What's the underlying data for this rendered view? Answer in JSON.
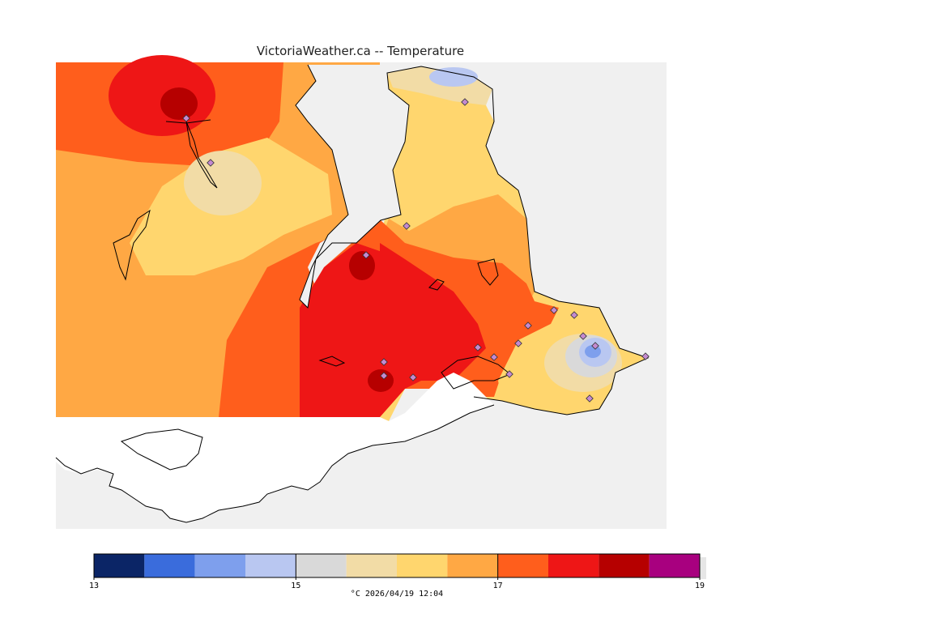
{
  "title": "VictoriaWeather.ca -- Temperature",
  "legend": {
    "min": 13,
    "max": 19,
    "ticks": [
      "13",
      "15",
      "17",
      "19"
    ],
    "bins": [
      {
        "from": 13.0,
        "to": 13.5,
        "color": "#0b2566"
      },
      {
        "from": 13.5,
        "to": 14.0,
        "color": "#3a6cdc"
      },
      {
        "from": 14.0,
        "to": 14.5,
        "color": "#7e9fed"
      },
      {
        "from": 14.5,
        "to": 15.0,
        "color": "#b9c7f1"
      },
      {
        "from": 15.0,
        "to": 15.5,
        "color": "#d9d9d9"
      },
      {
        "from": 15.5,
        "to": 16.0,
        "color": "#f2dca6"
      },
      {
        "from": 16.0,
        "to": 16.5,
        "color": "#ffd66e"
      },
      {
        "from": 16.5,
        "to": 17.0,
        "color": "#ffa844"
      },
      {
        "from": 17.0,
        "to": 17.5,
        "color": "#ff5e1c"
      },
      {
        "from": 17.5,
        "to": 18.0,
        "color": "#ee1616"
      },
      {
        "from": 18.0,
        "to": 18.5,
        "color": "#b60000"
      },
      {
        "from": 18.5,
        "to": 19.0,
        "color": "#a8007f"
      }
    ]
  },
  "unit": "°C",
  "timestamp": "2026/04/19 12:04",
  "footer_text": "°C  2026/04/19 12:04"
}
